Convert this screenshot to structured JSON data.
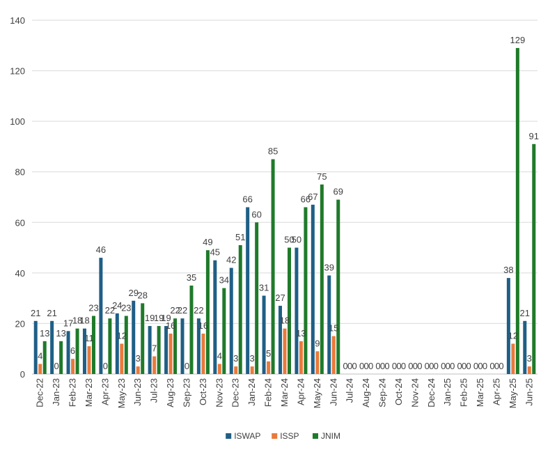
{
  "chart_data": {
    "type": "bar",
    "categories": [
      "Dec-22",
      "Jan-23",
      "Feb-23",
      "Mar-23",
      "Apr-23",
      "May-23",
      "Jun-23",
      "Jul-23",
      "Aug-23",
      "Sep-23",
      "Oct-23",
      "Nov-23",
      "Dec-23",
      "Jan-24",
      "Feb-24",
      "Mar-24",
      "Apr-24",
      "May-24",
      "Jun-24",
      "Jul-24",
      "Aug-24",
      "Sep-24",
      "Oct-24",
      "Nov-24",
      "Dec-24",
      "Jan-25",
      "Feb-25",
      "Mar-25",
      "Apr-25",
      "May-25",
      "Jun-25"
    ],
    "series": [
      {
        "name": "ISWAP",
        "color": "#1f5f86",
        "values": [
          21,
          21,
          17,
          18,
          46,
          24,
          29,
          19,
          19,
          22,
          22,
          45,
          42,
          66,
          31,
          27,
          50,
          67,
          39,
          0,
          0,
          0,
          0,
          0,
          0,
          0,
          0,
          0,
          0,
          38,
          21
        ]
      },
      {
        "name": "ISSP",
        "color": "#e97a3c",
        "values": [
          4,
          0,
          6,
          11,
          0,
          12,
          3,
          7,
          16,
          0,
          16,
          4,
          3,
          3,
          5,
          18,
          13,
          9,
          15,
          0,
          0,
          0,
          0,
          0,
          0,
          0,
          0,
          0,
          0,
          12,
          3
        ]
      },
      {
        "name": "JNIM",
        "color": "#1f7a2a",
        "values": [
          13,
          13,
          18,
          23,
          22,
          23,
          28,
          19,
          22,
          35,
          49,
          34,
          51,
          60,
          85,
          50,
          66,
          75,
          69,
          0,
          0,
          0,
          0,
          0,
          0,
          0,
          0,
          0,
          0,
          129,
          91
        ]
      }
    ],
    "ylim": [
      0,
      140
    ],
    "yticks": [
      0,
      20,
      40,
      60,
      80,
      100,
      120,
      140
    ],
    "grid": true,
    "legend": "bottom",
    "xlabel": "",
    "ylabel": ""
  }
}
